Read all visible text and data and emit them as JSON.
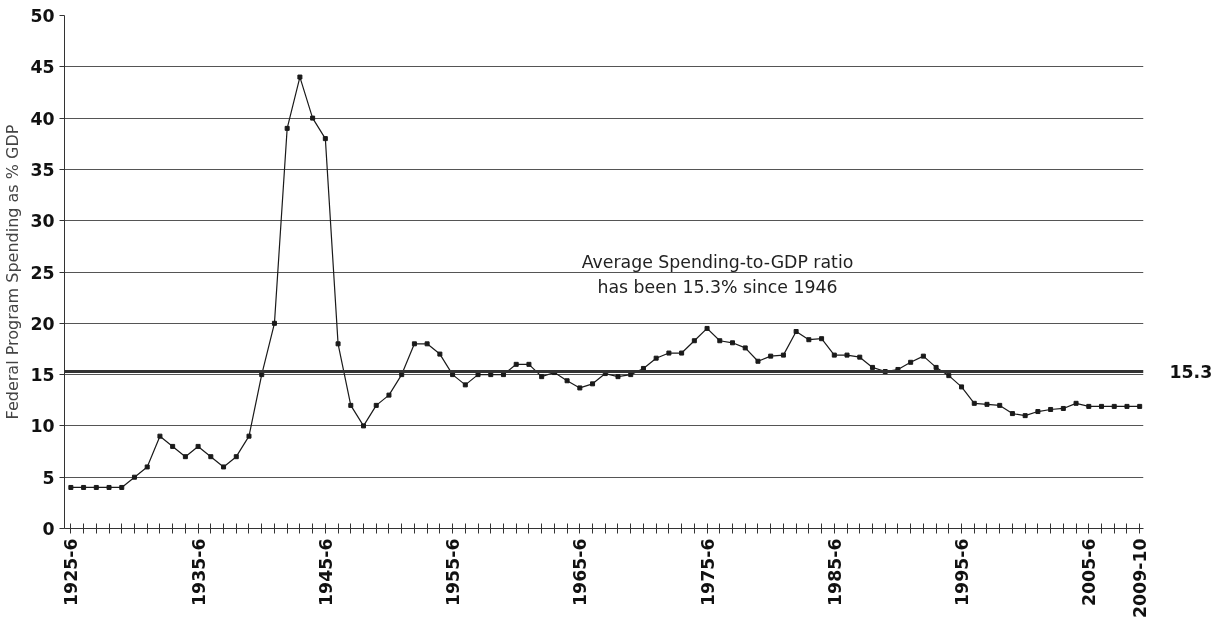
{
  "chart_data": {
    "type": "line",
    "ylabel": "Federal Program Spending as % GDP",
    "categories": [
      "1925-6",
      null,
      null,
      null,
      null,
      null,
      null,
      null,
      null,
      null,
      "1935-6",
      null,
      null,
      null,
      null,
      null,
      null,
      null,
      null,
      null,
      "1945-6",
      null,
      null,
      null,
      null,
      null,
      null,
      null,
      null,
      null,
      "1955-6",
      null,
      null,
      null,
      null,
      null,
      null,
      null,
      null,
      null,
      "1965-6",
      null,
      null,
      null,
      null,
      null,
      null,
      null,
      null,
      null,
      "1975-6",
      null,
      null,
      null,
      null,
      null,
      null,
      null,
      null,
      null,
      "1985-6",
      null,
      null,
      null,
      null,
      null,
      null,
      null,
      null,
      null,
      "1995-6",
      null,
      null,
      null,
      null,
      null,
      null,
      null,
      null,
      null,
      "2005-6",
      null,
      null,
      null,
      "2009-10"
    ],
    "series": [
      {
        "color": "#1a1a1a",
        "values": [
          4,
          4,
          4,
          4,
          4,
          5,
          6,
          9,
          8,
          7,
          8,
          7,
          6,
          7,
          9,
          15,
          20,
          39,
          44,
          40,
          38,
          18,
          12,
          10,
          12,
          13,
          15,
          18,
          18,
          17,
          15,
          14,
          15,
          15,
          15,
          16,
          16,
          14.8,
          15.2,
          14.4,
          13.7,
          14.1,
          15.1,
          14.8,
          15,
          15.6,
          16.6,
          17.1,
          17.1,
          18.3,
          19.5,
          18.3,
          18.1,
          17.6,
          16.3,
          16.8,
          16.9,
          19.2,
          18.4,
          18.5,
          16.9,
          16.9,
          16.7,
          15.7,
          15.3,
          15.5,
          16.2,
          16.8,
          15.7,
          14.9,
          13.8,
          12.2,
          12.1,
          12,
          11.2,
          11,
          11.4,
          11.6,
          11.7,
          12.2,
          11.9,
          11.9,
          11.9,
          11.9,
          11.9
        ]
      }
    ],
    "ylim": [
      0,
      50
    ],
    "yticks": [
      0,
      5,
      10,
      15,
      20,
      25,
      30,
      35,
      40,
      45,
      50
    ],
    "grid": "y",
    "marker": "square",
    "line_style": "solid",
    "ref_lines": [
      {
        "axis": "y",
        "value": 15.3,
        "label": "15.3",
        "color": "#333333"
      }
    ],
    "annotations": [
      "Average Spending-to-GDP ratio\nhas been 15.3% since 1946"
    ]
  }
}
